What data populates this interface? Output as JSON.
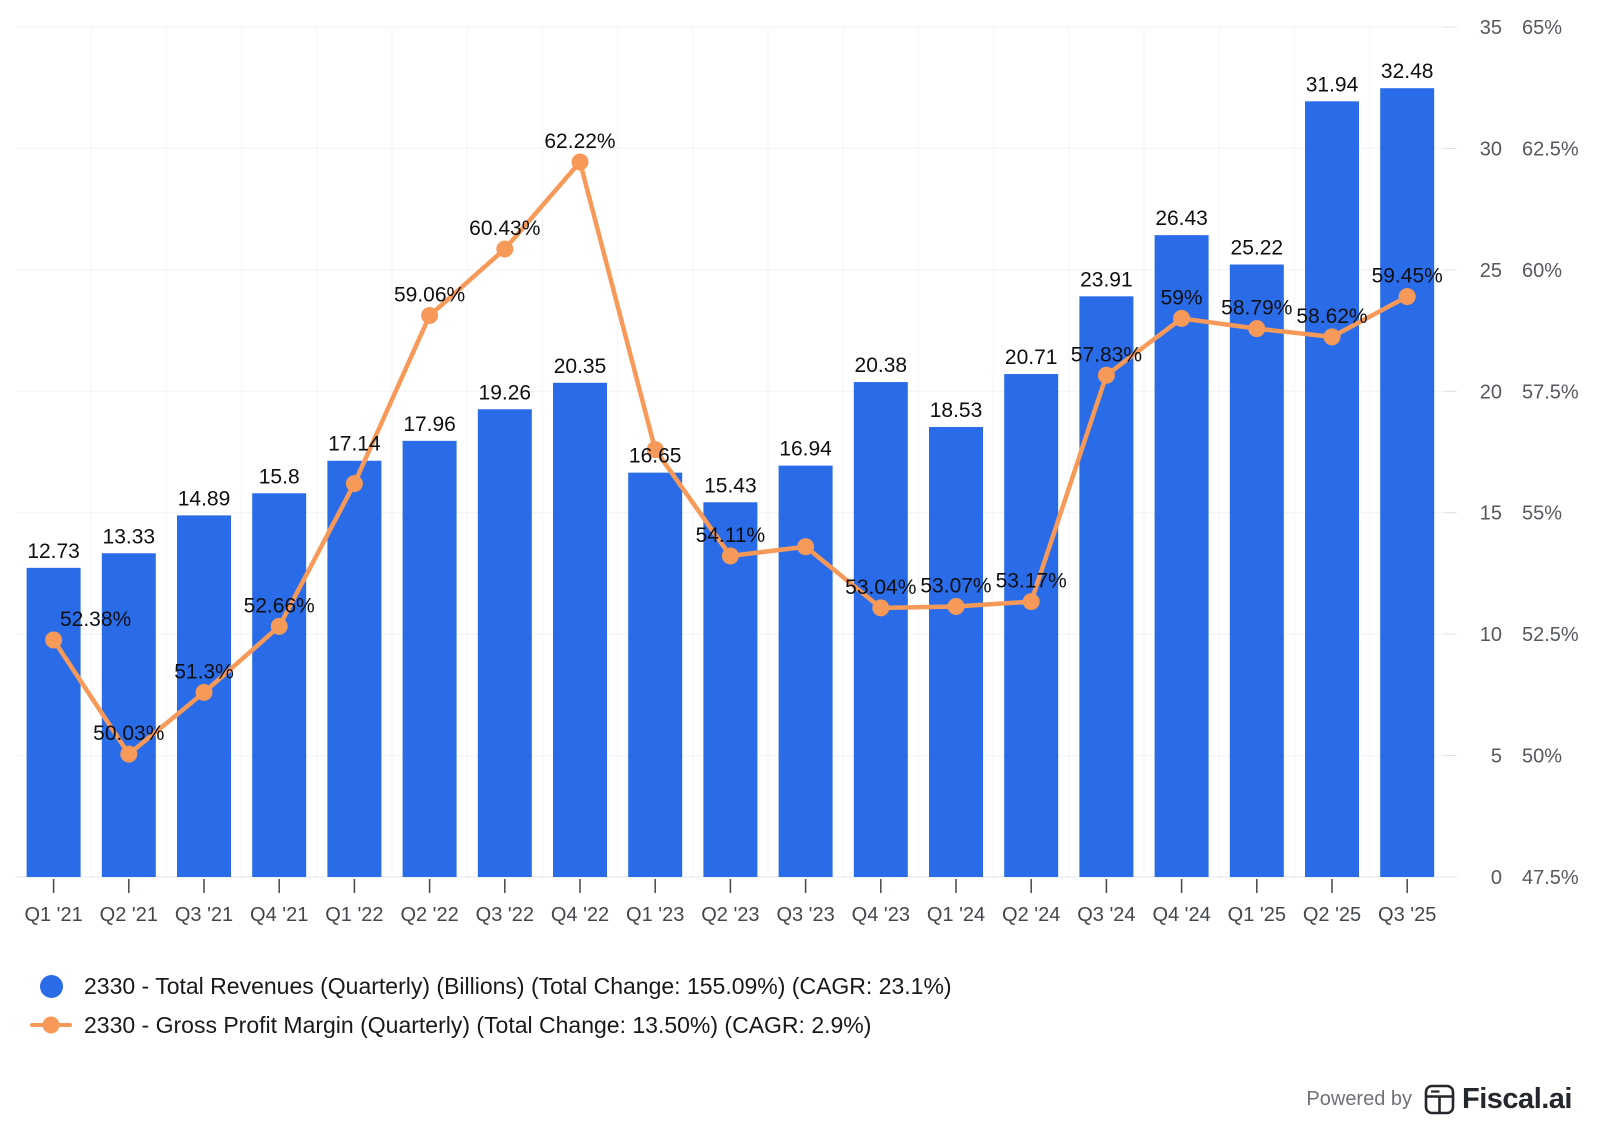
{
  "chart_data": {
    "type": "combo",
    "categories": [
      "Q1 '21",
      "Q2 '21",
      "Q3 '21",
      "Q4 '21",
      "Q1 '22",
      "Q2 '22",
      "Q3 '22",
      "Q4 '22",
      "Q1 '23",
      "Q2 '23",
      "Q3 '23",
      "Q4 '23",
      "Q1 '24",
      "Q2 '24",
      "Q3 '24",
      "Q4 '24",
      "Q1 '25",
      "Q2 '25",
      "Q3 '25"
    ],
    "series": [
      {
        "name": "2330 - Total Revenues (Quarterly) (Billions)",
        "type": "bar",
        "color": "#2a6ce8",
        "axis_range": [
          0,
          35
        ],
        "values": [
          12.73,
          13.33,
          14.89,
          15.8,
          17.14,
          17.96,
          19.26,
          20.35,
          16.65,
          15.43,
          16.94,
          20.38,
          18.53,
          20.71,
          23.91,
          26.43,
          25.22,
          31.94,
          32.48
        ],
        "labels": [
          "12.73",
          "13.33",
          "14.89",
          "15.8",
          "17.14",
          "17.96",
          "19.26",
          "20.35",
          "16.65",
          "15.43",
          "16.94",
          "20.38",
          "18.53",
          "20.71",
          "23.91",
          "26.43",
          "25.22",
          "31.94",
          "32.48"
        ]
      },
      {
        "name": "2330 - Gross Profit Margin (Quarterly)",
        "type": "line",
        "color": "#f79a59",
        "axis_range": [
          47.5,
          65
        ],
        "values": [
          52.38,
          50.03,
          51.3,
          52.66,
          55.6,
          59.06,
          60.43,
          62.22,
          56.3,
          54.11,
          54.3,
          53.04,
          53.07,
          53.17,
          57.83,
          59,
          58.79,
          58.62,
          59.45
        ],
        "labels": [
          "52.38%",
          "50.03%",
          "51.3%",
          "52.66%",
          null,
          "59.06%",
          "60.43%",
          "62.22%",
          null,
          "54.11%",
          null,
          "53.04%",
          "53.07%",
          "53.17%",
          "57.83%",
          "59%",
          "58.79%",
          "58.62%",
          "59.45%"
        ],
        "label_dx": [
          42,
          0,
          0,
          0,
          0,
          0,
          0,
          0,
          0,
          0,
          0,
          0,
          0,
          0,
          0,
          0,
          0,
          0,
          0
        ]
      }
    ],
    "right_axis": {
      "revenue_ticks": [
        "0",
        "5",
        "10",
        "15",
        "20",
        "25",
        "30",
        "35"
      ],
      "margin_ticks": [
        "47.5%",
        "50%",
        "52.5%",
        "55%",
        "57.5%",
        "60%",
        "62.5%",
        "65%"
      ]
    },
    "grid": true,
    "legend_position": "bottom-left"
  },
  "legend": {
    "items": [
      {
        "label": "2330 - Total Revenues (Quarterly) (Billions) (Total Change: 155.09%) (CAGR: 23.1%)",
        "marker": "circle",
        "color": "#2a6ce8"
      },
      {
        "label": "2330 - Gross Profit Margin (Quarterly) (Total Change: 13.50%) (CAGR: 2.9%)",
        "marker": "line-dot",
        "color": "#f79a59"
      }
    ]
  },
  "footer": {
    "powered_by": "Powered by",
    "brand": "Fiscal.ai"
  }
}
